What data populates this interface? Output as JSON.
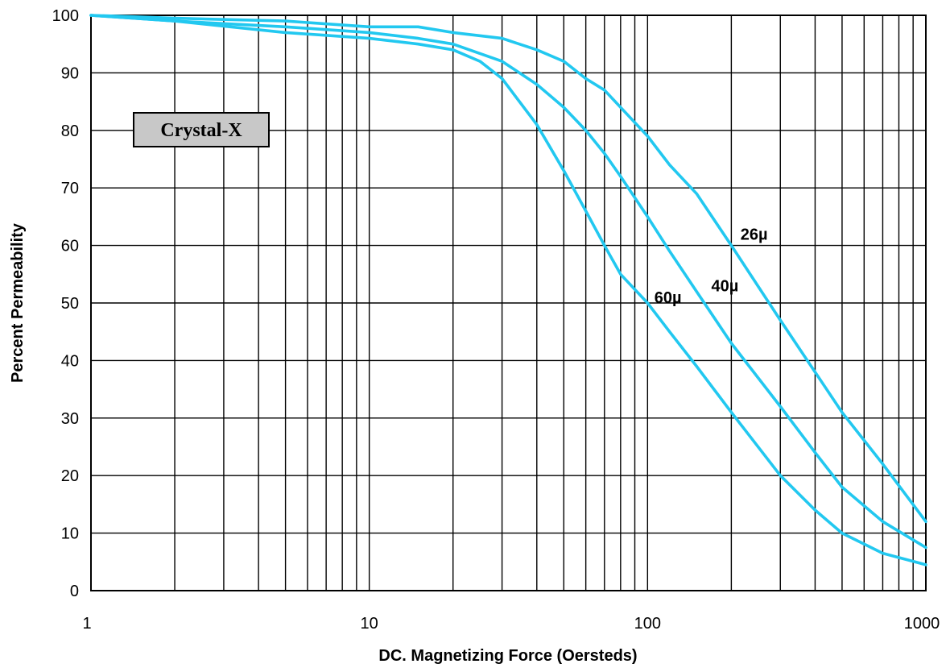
{
  "chart_data": {
    "type": "line",
    "title": "",
    "xlabel": "DC. Magnetizing Force (Oersteds)",
    "ylabel": "Percent Permeability",
    "xscale": "log",
    "xlim": [
      1,
      1000
    ],
    "ylim": [
      0,
      100
    ],
    "grid": true,
    "x_ticks": [
      1,
      10,
      100,
      1000
    ],
    "x_tick_labels": [
      "1",
      "10",
      "100",
      "1000"
    ],
    "y_ticks": [
      0,
      10,
      20,
      30,
      40,
      50,
      60,
      70,
      80,
      90,
      100
    ],
    "y_tick_labels": [
      "0",
      "10",
      "20",
      "30",
      "40",
      "50",
      "60",
      "70",
      "80",
      "90",
      "100"
    ],
    "legend_box": {
      "text": "Crystal-X",
      "placement": "upper-left"
    },
    "line_color": "#22c8f0",
    "series": [
      {
        "name": "26µ",
        "x": [
          1,
          2,
          5,
          10,
          15,
          20,
          30,
          40,
          50,
          60,
          70,
          80,
          100,
          120,
          150,
          200,
          300,
          400,
          500,
          700,
          1000
        ],
        "y": [
          100,
          99.5,
          99,
          98,
          98,
          97,
          96,
          94,
          92,
          89,
          87,
          84,
          79,
          74,
          69,
          60,
          47,
          38,
          31,
          22,
          12
        ]
      },
      {
        "name": "40µ",
        "x": [
          1,
          2,
          5,
          10,
          15,
          20,
          30,
          40,
          50,
          60,
          70,
          80,
          100,
          120,
          150,
          200,
          300,
          400,
          500,
          700,
          1000
        ],
        "y": [
          100,
          99,
          98,
          97,
          96,
          95,
          92,
          88,
          84,
          80,
          76,
          72,
          65,
          59,
          52,
          43,
          32,
          24,
          18,
          12,
          7.5
        ]
      },
      {
        "name": "60µ",
        "x": [
          1,
          2,
          5,
          10,
          15,
          20,
          25,
          30,
          40,
          50,
          60,
          70,
          80,
          100,
          120,
          150,
          200,
          300,
          400,
          500,
          700,
          1000
        ],
        "y": [
          100,
          99,
          97,
          96,
          95,
          94,
          92,
          89,
          81,
          73,
          66,
          60,
          55,
          50,
          45,
          39,
          31,
          20,
          14,
          10,
          6.5,
          4.5
        ]
      }
    ],
    "series_labels": [
      {
        "text": "26µ",
        "at": {
          "x": 210,
          "y": 61
        }
      },
      {
        "text": "40µ",
        "at": {
          "x": 165,
          "y": 52
        }
      },
      {
        "text": "60µ",
        "at": {
          "x": 103,
          "y": 50
        }
      }
    ]
  }
}
